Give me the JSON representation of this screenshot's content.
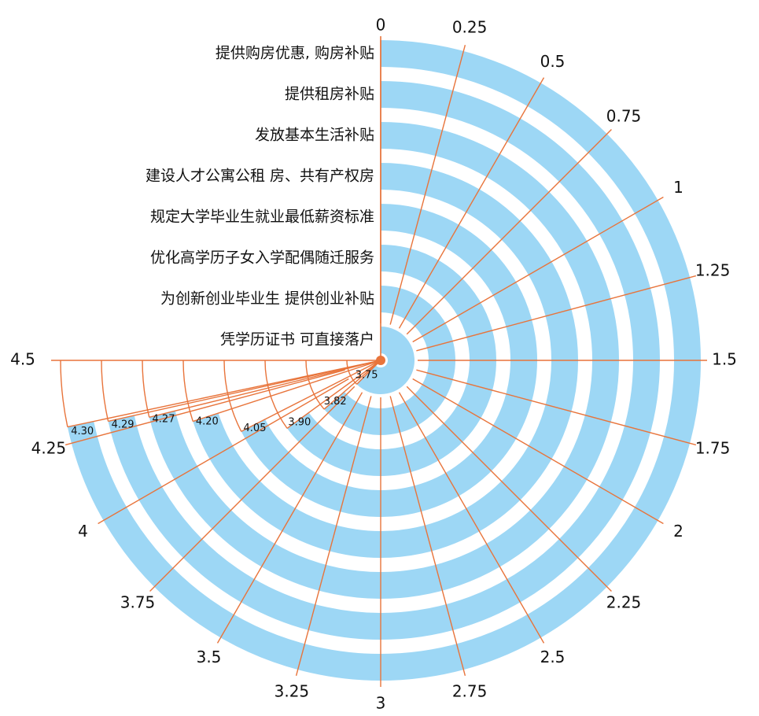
{
  "chart_data": {
    "type": "radial-bar",
    "title": "",
    "axis_max": 4.5,
    "axis_ticks": [
      "0",
      "0.25",
      "0.5",
      "0.75",
      "1",
      "1.25",
      "1.5",
      "1.75",
      "2",
      "2.25",
      "2.5",
      "2.75",
      "3",
      "3.25",
      "3.5",
      "3.75",
      "4",
      "4.25",
      "4.5"
    ],
    "categories": [
      "提供购房优惠, 购房补贴",
      "提供租房补贴",
      "发放基本生活补贴",
      "建设人才公寓公租 房、共有产权房",
      "规定大学毕业生就业最低薪资标准",
      "优化高学历子女入学配偶随迁服务",
      "为创新创业毕业生 提供创业补贴",
      "凭学历证书 可直接落户"
    ],
    "values": [
      4.3,
      4.29,
      4.27,
      4.2,
      4.05,
      3.9,
      3.82,
      3.75
    ],
    "value_labels": [
      "4.30",
      "4.29",
      "4.27",
      "4.20",
      "4.05",
      "3.90",
      "3.82",
      "3.75"
    ],
    "colors": {
      "bar": "#9dd7f5",
      "axis": "#e8743b"
    }
  }
}
